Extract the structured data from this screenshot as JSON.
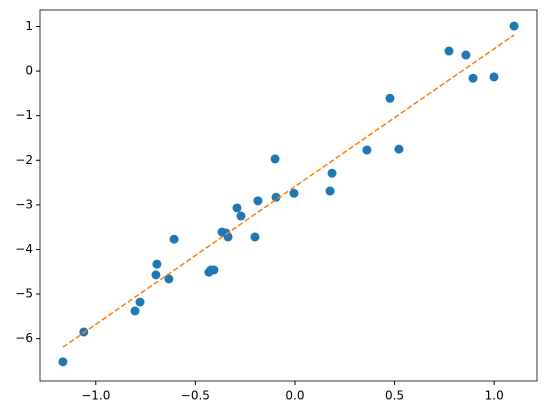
{
  "chart_data": {
    "type": "scatter",
    "x": [
      -1.165,
      -1.06,
      -0.803,
      -0.778,
      -0.698,
      -0.693,
      -0.633,
      -0.607,
      -0.432,
      -0.422,
      -0.407,
      -0.366,
      -0.346,
      -0.336,
      -0.291,
      -0.271,
      -0.201,
      -0.186,
      -0.1,
      -0.095,
      -0.005,
      0.176,
      0.186,
      0.361,
      0.522,
      0.477,
      0.773,
      0.858,
      0.894,
      0.999,
      1.1
    ],
    "values": [
      -6.52,
      -5.85,
      -5.38,
      -5.18,
      -4.57,
      -4.33,
      -4.66,
      -3.77,
      -4.51,
      -4.46,
      -4.46,
      -3.61,
      -3.63,
      -3.72,
      -3.07,
      -3.25,
      -3.72,
      -2.91,
      -1.97,
      -2.83,
      -2.74,
      -2.69,
      -2.29,
      -1.77,
      -1.75,
      -0.61,
      0.45,
      0.36,
      -0.16,
      -0.13,
      1.01
    ],
    "color": "#1f77b4",
    "fit": {
      "x": [
        -1.165,
        1.1
      ],
      "values": [
        -6.19,
        0.81
      ],
      "color": "#ff7f0e",
      "linestyle": "dashed"
    },
    "xlim": [
      -1.28,
      1.215
    ],
    "ylim": [
      -6.95,
      1.37
    ],
    "xticks": [
      {
        "value": -1.0,
        "label": "−1.0"
      },
      {
        "value": -0.5,
        "label": "−0.5"
      },
      {
        "value": 0.0,
        "label": "0.0"
      },
      0.5,
      {
        "value": 1.0,
        "label": "1.0"
      }
    ],
    "yticks": [
      {
        "value": -6,
        "label": "−6"
      },
      {
        "value": -5,
        "label": "−5"
      },
      {
        "value": -4,
        "label": "−4"
      },
      {
        "value": -3,
        "label": "−3"
      },
      {
        "value": -2,
        "label": "−2"
      },
      {
        "value": -1,
        "label": "−1"
      },
      0,
      1
    ]
  }
}
